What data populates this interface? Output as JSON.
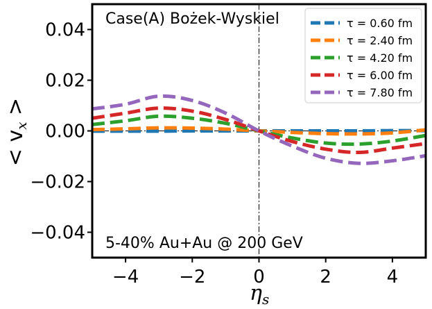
{
  "chart_data": {
    "type": "line",
    "title": "",
    "xlabel": "η",
    "xlabel_sub": "s",
    "ylabel": "< v",
    "ylabel_sub": "x",
    "ylabel_close": " >",
    "xlim": [
      -5,
      5
    ],
    "ylim": [
      -0.05,
      0.05
    ],
    "xticks": [
      -4,
      -2,
      0,
      2,
      4
    ],
    "xtick_labels": [
      "−4",
      "−2",
      "0",
      "2",
      "4"
    ],
    "yticks": [
      -0.04,
      -0.02,
      0.0,
      0.02,
      0.04
    ],
    "ytick_labels": [
      "−0.04",
      "−0.02",
      "0.00",
      "0.02",
      "0.04"
    ],
    "reference_lines": {
      "horizontal_y": 0,
      "vertical_x": 0,
      "style": "dash-dot"
    },
    "annotations": {
      "top_left": "Case(A) Bożek-Wyskiel",
      "bottom_left": "5-40% Au+Au @ 200 GeV"
    },
    "legend_position": "top-right",
    "series": [
      {
        "name": "τ = 0.60 fm",
        "color": "#1f77b4",
        "x": [
          -5,
          -4,
          -3,
          -2,
          -1,
          0,
          1,
          2,
          3,
          4,
          5
        ],
        "y": [
          -0.0001,
          -0.0001,
          -0.0001,
          0.0,
          0.0,
          0.0,
          0.0,
          0.0,
          0.0,
          0.0001,
          0.0001
        ]
      },
      {
        "name": "τ = 2.40 fm",
        "color": "#ff7f0e",
        "x": [
          -5,
          -4,
          -3,
          -2,
          -1,
          0,
          1,
          2,
          3,
          4,
          5
        ],
        "y": [
          0.0005,
          0.0008,
          0.0012,
          0.0011,
          0.0007,
          0.0,
          -0.0006,
          -0.0011,
          -0.0012,
          -0.0008,
          0.0004
        ]
      },
      {
        "name": "τ = 4.20 fm",
        "color": "#2ca02c",
        "x": [
          -5,
          -4,
          -3,
          -2,
          -1,
          0,
          1,
          2,
          3,
          4,
          5
        ],
        "y": [
          0.0025,
          0.004,
          0.0058,
          0.005,
          0.003,
          0.0,
          -0.0028,
          -0.0048,
          -0.0052,
          -0.004,
          -0.0018
        ]
      },
      {
        "name": "τ = 6.00 fm",
        "color": "#d62728",
        "x": [
          -5,
          -4,
          -3,
          -2,
          -1,
          0,
          1,
          2,
          3,
          4,
          5
        ],
        "y": [
          0.005,
          0.007,
          0.009,
          0.0078,
          0.0045,
          0.0,
          -0.0042,
          -0.0072,
          -0.0085,
          -0.0068,
          -0.005
        ]
      },
      {
        "name": "τ = 7.80 fm",
        "color": "#9467bd",
        "x": [
          -5,
          -4,
          -3,
          -2,
          -1,
          0,
          1,
          2,
          3,
          4,
          5
        ],
        "y": [
          0.0087,
          0.0105,
          0.0137,
          0.012,
          0.007,
          0.0,
          -0.006,
          -0.0108,
          -0.0128,
          -0.0118,
          -0.0098
        ]
      }
    ]
  }
}
